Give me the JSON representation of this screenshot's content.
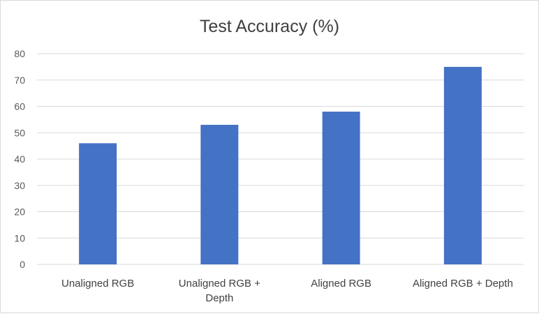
{
  "chart_data": {
    "type": "bar",
    "title": "Test Accuracy (%)",
    "categories": [
      "Unaligned RGB",
      "Unaligned RGB + Depth",
      "Aligned RGB",
      "Aligned RGB + Depth"
    ],
    "category_lines": [
      [
        "Unaligned RGB"
      ],
      [
        "Unaligned RGB +",
        "Depth"
      ],
      [
        "Aligned RGB"
      ],
      [
        "Aligned RGB + Depth"
      ]
    ],
    "values": [
      46,
      53,
      58,
      75
    ],
    "xlabel": "",
    "ylabel": "",
    "ylim": [
      0,
      80
    ],
    "yticks": [
      0,
      10,
      20,
      30,
      40,
      50,
      60,
      70,
      80
    ],
    "grid": true,
    "legend": "none",
    "bar_color": "#4472c4"
  }
}
